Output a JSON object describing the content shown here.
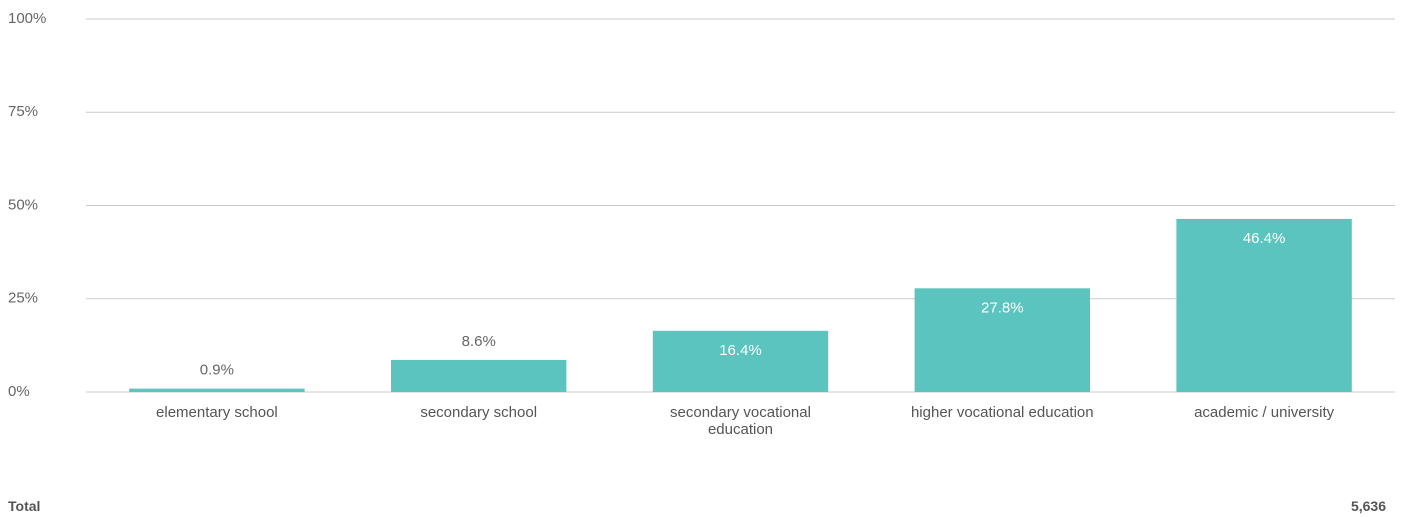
{
  "chart_data": {
    "type": "bar",
    "categories": [
      "elementary school",
      "secondary school",
      "secondary vocational education",
      "higher vocational education",
      "academic / university"
    ],
    "values": [
      0.9,
      8.6,
      16.4,
      27.8,
      46.4
    ],
    "value_labels": [
      "0.9%",
      "8.6%",
      "16.4%",
      "27.8%",
      "46.4%"
    ],
    "color": "#5bc4bf",
    "ylim": [
      0,
      100
    ],
    "yticks": [
      {
        "value": 0,
        "label": "0%"
      },
      {
        "value": 25,
        "label": "25%"
      },
      {
        "value": 50,
        "label": "50%"
      },
      {
        "value": 75,
        "label": "75%"
      },
      {
        "value": 100,
        "label": "100%"
      }
    ],
    "grid": true
  },
  "total": {
    "label": "Total",
    "value": "5,636"
  }
}
